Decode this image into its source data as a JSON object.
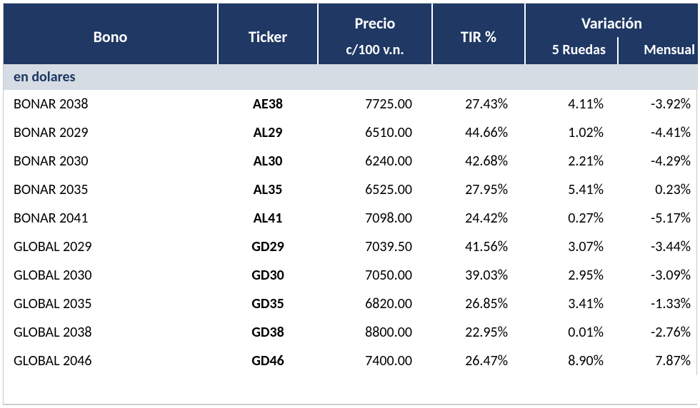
{
  "header": {
    "bono": "Bono",
    "ticker": "Ticker",
    "precio_top": "Precio",
    "precio_bottom": "c/100 v.n.",
    "tir": "TIR %",
    "variacion": "Variación",
    "ruedas": "5 Ruedas",
    "mensual": "Mensual"
  },
  "section": {
    "label": "en dolares"
  },
  "style": {
    "header_bg": "#1f3864",
    "header_fg": "#ffffff",
    "section_bg": "#d5dce4",
    "section_fg": "#1f3864",
    "row_fg": "#000000",
    "header_fontsize": 22,
    "body_fontsize": 20
  },
  "columns": [
    "bono",
    "ticker",
    "precio",
    "tir",
    "ruedas",
    "mensual"
  ],
  "rows": [
    {
      "bono": "BONAR 2038",
      "ticker": "AE38",
      "precio": "7725.00",
      "tir": "27.43%",
      "ruedas": "4.11%",
      "mensual": "-3.92%"
    },
    {
      "bono": "BONAR 2029",
      "ticker": "AL29",
      "precio": "6510.00",
      "tir": "44.66%",
      "ruedas": "1.02%",
      "mensual": "-4.41%"
    },
    {
      "bono": "BONAR 2030",
      "ticker": "AL30",
      "precio": "6240.00",
      "tir": "42.68%",
      "ruedas": "2.21%",
      "mensual": "-4.29%"
    },
    {
      "bono": "BONAR 2035",
      "ticker": "AL35",
      "precio": "6525.00",
      "tir": "27.95%",
      "ruedas": "5.41%",
      "mensual": "0.23%"
    },
    {
      "bono": "BONAR 2041",
      "ticker": "AL41",
      "precio": "7098.00",
      "tir": "24.42%",
      "ruedas": "0.27%",
      "mensual": "-5.17%"
    },
    {
      "bono": "GLOBAL 2029",
      "ticker": "GD29",
      "precio": "7039.50",
      "tir": "41.56%",
      "ruedas": "3.07%",
      "mensual": "-3.44%"
    },
    {
      "bono": "GLOBAL 2030",
      "ticker": "GD30",
      "precio": "7050.00",
      "tir": "39.03%",
      "ruedas": "2.95%",
      "mensual": "-3.09%"
    },
    {
      "bono": "GLOBAL 2035",
      "ticker": "GD35",
      "precio": "6820.00",
      "tir": "26.85%",
      "ruedas": "3.41%",
      "mensual": "-1.33%"
    },
    {
      "bono": "GLOBAL 2038",
      "ticker": "GD38",
      "precio": "8800.00",
      "tir": "22.95%",
      "ruedas": "0.01%",
      "mensual": "-2.76%"
    },
    {
      "bono": "GLOBAL 2046",
      "ticker": "GD46",
      "precio": "7400.00",
      "tir": "26.47%",
      "ruedas": "8.90%",
      "mensual": "7.87%"
    }
  ]
}
